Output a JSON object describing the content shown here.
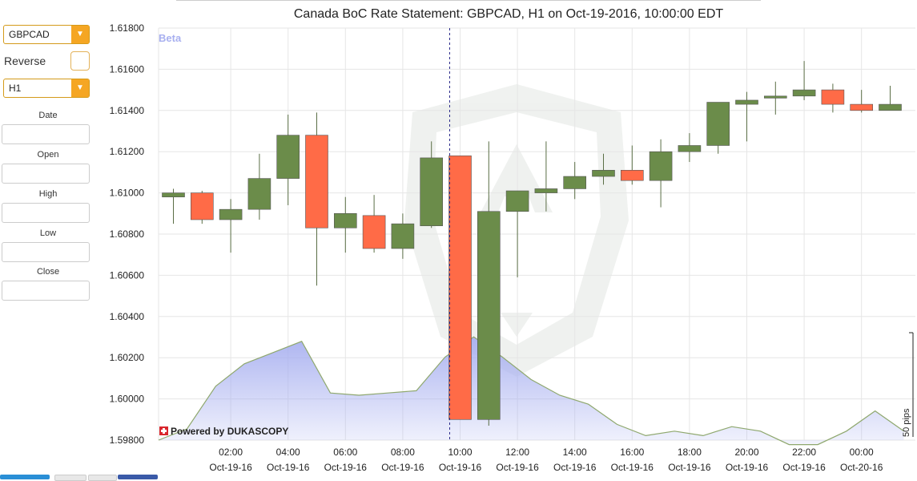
{
  "sidebar": {
    "symbol": "GBPCAD",
    "reverse_label": "Reverse",
    "period": "H1",
    "fields": [
      {
        "label": "Date",
        "value": ""
      },
      {
        "label": "Open",
        "value": ""
      },
      {
        "label": "High",
        "value": ""
      },
      {
        "label": "Low",
        "value": ""
      },
      {
        "label": "Close",
        "value": ""
      }
    ]
  },
  "chart_data": {
    "type": "candlestick",
    "title": "Canada BoC Rate Statement: GBPCAD, H1 on Oct-19-2016, 10:00:00 EDT",
    "badge": "Beta",
    "watermark_brand": "Powered by DUKASCOPY",
    "volume_scale_label": "50 pips",
    "ylim": [
      1.598,
      1.618
    ],
    "yticks": [
      "1.61800",
      "1.61600",
      "1.61400",
      "1.61200",
      "1.61000",
      "1.60800",
      "1.60600",
      "1.60400",
      "1.60200",
      "1.60000",
      "1.59800"
    ],
    "xticks": [
      {
        "time": "02:00",
        "date": "Oct-19-16"
      },
      {
        "time": "04:00",
        "date": "Oct-19-16"
      },
      {
        "time": "06:00",
        "date": "Oct-19-16"
      },
      {
        "time": "08:00",
        "date": "Oct-19-16"
      },
      {
        "time": "10:00",
        "date": "Oct-19-16"
      },
      {
        "time": "12:00",
        "date": "Oct-19-16"
      },
      {
        "time": "14:00",
        "date": "Oct-19-16"
      },
      {
        "time": "16:00",
        "date": "Oct-19-16"
      },
      {
        "time": "18:00",
        "date": "Oct-19-16"
      },
      {
        "time": "20:00",
        "date": "Oct-19-16"
      },
      {
        "time": "22:00",
        "date": "Oct-19-16"
      },
      {
        "time": "00:00",
        "date": "Oct-20-16"
      }
    ],
    "event_time": "10:00",
    "colors": {
      "up": "#6b8c4a",
      "down": "#ff6b47",
      "grid": "#e6e6e6",
      "event_line": "#2c2c8a",
      "volume_fill": "#a8b0f0",
      "volume_line": "#8fa86e"
    },
    "candles": [
      {
        "t": "00:00",
        "open": 1.6098,
        "high": 1.6102,
        "low": 1.6085,
        "close": 1.61
      },
      {
        "t": "01:00",
        "open": 1.61,
        "high": 1.6101,
        "low": 1.6085,
        "close": 1.6087
      },
      {
        "t": "02:00",
        "open": 1.6087,
        "high": 1.6097,
        "low": 1.6071,
        "close": 1.6092
      },
      {
        "t": "03:00",
        "open": 1.6092,
        "high": 1.6119,
        "low": 1.6087,
        "close": 1.6107
      },
      {
        "t": "04:00",
        "open": 1.6107,
        "high": 1.6138,
        "low": 1.6094,
        "close": 1.6128
      },
      {
        "t": "05:00",
        "open": 1.6128,
        "high": 1.6139,
        "low": 1.6055,
        "close": 1.6083
      },
      {
        "t": "06:00",
        "open": 1.6083,
        "high": 1.6098,
        "low": 1.6071,
        "close": 1.609
      },
      {
        "t": "07:00",
        "open": 1.6089,
        "high": 1.6099,
        "low": 1.6071,
        "close": 1.6073
      },
      {
        "t": "08:00",
        "open": 1.6073,
        "high": 1.609,
        "low": 1.6068,
        "close": 1.6085
      },
      {
        "t": "09:00",
        "open": 1.6084,
        "high": 1.6125,
        "low": 1.6083,
        "close": 1.6117
      },
      {
        "t": "10:00",
        "open": 1.6118,
        "high": 1.6118,
        "low": 1.599,
        "close": 1.599
      },
      {
        "t": "11:00",
        "open": 1.599,
        "high": 1.6125,
        "low": 1.5987,
        "close": 1.6091
      },
      {
        "t": "12:00",
        "open": 1.6091,
        "high": 1.6101,
        "low": 1.6059,
        "close": 1.6101
      },
      {
        "t": "13:00",
        "open": 1.61,
        "high": 1.6125,
        "low": 1.6091,
        "close": 1.6102
      },
      {
        "t": "14:00",
        "open": 1.6102,
        "high": 1.6115,
        "low": 1.6097,
        "close": 1.6108
      },
      {
        "t": "15:00",
        "open": 1.6108,
        "high": 1.6119,
        "low": 1.6104,
        "close": 1.6111
      },
      {
        "t": "16:00",
        "open": 1.6111,
        "high": 1.6123,
        "low": 1.6104,
        "close": 1.6106
      },
      {
        "t": "17:00",
        "open": 1.6106,
        "high": 1.6126,
        "low": 1.6093,
        "close": 1.612
      },
      {
        "t": "18:00",
        "open": 1.612,
        "high": 1.6129,
        "low": 1.6115,
        "close": 1.6123
      },
      {
        "t": "19:00",
        "open": 1.6123,
        "high": 1.6144,
        "low": 1.6119,
        "close": 1.6144
      },
      {
        "t": "20:00",
        "open": 1.6143,
        "high": 1.6149,
        "low": 1.6125,
        "close": 1.6145
      },
      {
        "t": "21:00",
        "open": 1.6146,
        "high": 1.6154,
        "low": 1.6138,
        "close": 1.6147
      },
      {
        "t": "22:00",
        "open": 1.6147,
        "high": 1.6164,
        "low": 1.6145,
        "close": 1.615
      },
      {
        "t": "23:00",
        "open": 1.615,
        "high": 1.6153,
        "low": 1.6139,
        "close": 1.6143
      },
      {
        "t": "00:00",
        "open": 1.6143,
        "high": 1.615,
        "low": 1.6139,
        "close": 1.614
      },
      {
        "t": "01:00",
        "open": 1.614,
        "high": 1.6152,
        "low": 1.614,
        "close": 1.6143
      }
    ],
    "volume_pips": [
      0,
      5,
      24,
      34,
      39,
      44,
      21,
      20,
      21,
      22,
      37,
      46,
      37,
      27,
      20,
      16,
      7,
      2,
      4,
      2,
      6,
      4,
      -2,
      -2,
      4,
      13,
      4
    ]
  }
}
